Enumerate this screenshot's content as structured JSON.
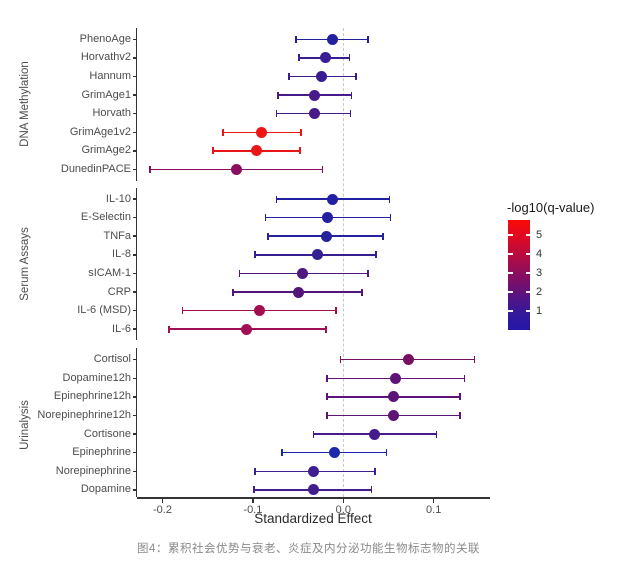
{
  "caption": "图4：累积社会优势与衰老、炎症及内分泌功能生物标志物的关联",
  "chart_data": {
    "type": "forest",
    "title": "",
    "xlabel": "Standardized Effect",
    "ylabel": "",
    "x_range": [
      -0.23,
      0.163
    ],
    "zero_line": 0.0,
    "grid": false,
    "x_ticks": [
      {
        "value": -0.2,
        "label": "-0.2"
      },
      {
        "value": -0.1,
        "label": "-0.1"
      },
      {
        "value": 0.0,
        "label": "0.0"
      },
      {
        "value": 0.1,
        "label": "0.1"
      }
    ],
    "legend": {
      "title": "-log10(q-value)",
      "position": "right",
      "range": [
        0,
        5.8
      ],
      "ticks": [
        5,
        4,
        3,
        2,
        1
      ],
      "gradient_top_to_bottom": [
        "#fb0a08",
        "#e10922",
        "#c00a3a",
        "#9b0d54",
        "#770f6c",
        "#521486",
        "#33199c",
        "#2517a8"
      ]
    },
    "groups": [
      {
        "label": "DNA Methylation",
        "rows": [
          {
            "label": "PhenoAge",
            "value": -0.012,
            "ci_low": -0.052,
            "ci_high": 0.027,
            "color": "#23209e",
            "neg_log10_q_est": 0.8
          },
          {
            "label": "Horvathv2",
            "value": -0.02,
            "ci_low": -0.049,
            "ci_high": 0.007,
            "color": "#3a1d92",
            "neg_log10_q_est": 1.4
          },
          {
            "label": "Hannum",
            "value": -0.024,
            "ci_low": -0.06,
            "ci_high": 0.014,
            "color": "#3a1d92",
            "neg_log10_q_est": 1.4
          },
          {
            "label": "GrimAge1",
            "value": -0.032,
            "ci_low": -0.072,
            "ci_high": 0.009,
            "color": "#47198a",
            "neg_log10_q_est": 1.8
          },
          {
            "label": "Horvath",
            "value": -0.032,
            "ci_low": -0.074,
            "ci_high": 0.008,
            "color": "#47198a",
            "neg_log10_q_est": 1.8
          },
          {
            "label": "GrimAge1v2",
            "value": -0.09,
            "ci_low": -0.133,
            "ci_high": -0.047,
            "color": "#ec1414",
            "neg_log10_q_est": 5.3
          },
          {
            "label": "GrimAge2",
            "value": -0.096,
            "ci_low": -0.144,
            "ci_high": -0.048,
            "color": "#e81616",
            "neg_log10_q_est": 5.2
          },
          {
            "label": "DunedinPACE",
            "value": -0.118,
            "ci_low": -0.214,
            "ci_high": -0.023,
            "color": "#8a0e60",
            "neg_log10_q_est": 2.9
          }
        ]
      },
      {
        "label": "Serum Assays",
        "rows": [
          {
            "label": "IL-10",
            "value": -0.012,
            "ci_low": -0.074,
            "ci_high": 0.051,
            "color": "#211fa2",
            "neg_log10_q_est": 0.7
          },
          {
            "label": "E-Selectin",
            "value": -0.017,
            "ci_low": -0.086,
            "ci_high": 0.052,
            "color": "#221fa0",
            "neg_log10_q_est": 0.7
          },
          {
            "label": "TNFa",
            "value": -0.019,
            "ci_low": -0.083,
            "ci_high": 0.044,
            "color": "#26219c",
            "neg_log10_q_est": 0.8
          },
          {
            "label": "IL-8",
            "value": -0.029,
            "ci_low": -0.098,
            "ci_high": 0.036,
            "color": "#362091",
            "neg_log10_q_est": 1.3
          },
          {
            "label": "sICAM-1",
            "value": -0.045,
            "ci_low": -0.115,
            "ci_high": 0.027,
            "color": "#4f1880",
            "neg_log10_q_est": 2.1
          },
          {
            "label": "CRP",
            "value": -0.05,
            "ci_low": -0.122,
            "ci_high": 0.021,
            "color": "#521678",
            "neg_log10_q_est": 2.2
          },
          {
            "label": "IL-6 (MSD)",
            "value": -0.093,
            "ci_low": -0.178,
            "ci_high": -0.008,
            "color": "#a30d50",
            "neg_log10_q_est": 3.5
          },
          {
            "label": "IL-6",
            "value": -0.107,
            "ci_low": -0.193,
            "ci_high": -0.019,
            "color": "#a00e54",
            "neg_log10_q_est": 3.4
          }
        ]
      },
      {
        "label": "Urinalysis",
        "rows": [
          {
            "label": "Cortisol",
            "value": 0.072,
            "ci_low": -0.003,
            "ci_high": 0.145,
            "color": "#781062",
            "neg_log10_q_est": 2.8
          },
          {
            "label": "Dopamine12h",
            "value": 0.058,
            "ci_low": -0.018,
            "ci_high": 0.134,
            "color": "#5e1377",
            "neg_log10_q_est": 2.4
          },
          {
            "label": "Epinephrine12h",
            "value": 0.055,
            "ci_low": -0.018,
            "ci_high": 0.129,
            "color": "#5c1478",
            "neg_log10_q_est": 2.4
          },
          {
            "label": "Norepinephrine12h",
            "value": 0.055,
            "ci_low": -0.018,
            "ci_high": 0.129,
            "color": "#5e1377",
            "neg_log10_q_est": 2.4
          },
          {
            "label": "Cortisone",
            "value": 0.034,
            "ci_low": -0.033,
            "ci_high": 0.103,
            "color": "#451b8c",
            "neg_log10_q_est": 1.7
          },
          {
            "label": "Epinephrine",
            "value": -0.01,
            "ci_low": -0.068,
            "ci_high": 0.048,
            "color": "#1e28ac",
            "neg_log10_q_est": 0.4
          },
          {
            "label": "Norepinephrine",
            "value": -0.033,
            "ci_low": -0.098,
            "ci_high": 0.035,
            "color": "#3f1e90",
            "neg_log10_q_est": 1.5
          },
          {
            "label": "Dopamine",
            "value": -0.033,
            "ci_low": -0.099,
            "ci_high": 0.031,
            "color": "#421d8e",
            "neg_log10_q_est": 1.5
          }
        ]
      }
    ]
  }
}
